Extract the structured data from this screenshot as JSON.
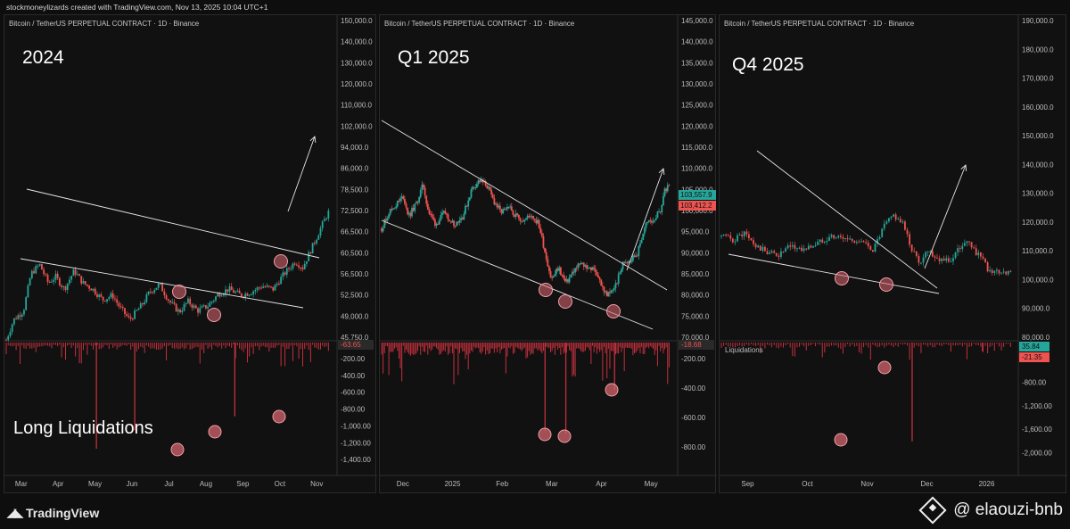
{
  "header": {
    "credit": "stockmoneylizards created with TradingView.com, Nov 13, 2025 10:04 UTC+1"
  },
  "footer": {
    "brand": "TradingView",
    "watermark": "@ elaouzi-bnb"
  },
  "colors": {
    "up": "#26a69a",
    "down": "#ef5350",
    "liq": "#c2313d",
    "circle": "#e06a74",
    "bg": "#111111",
    "line": "#e6e6e6"
  },
  "chart_data": [
    {
      "type": "candlestick",
      "title": "Bitcoin / TetherUS PERPETUAL CONTRACT · 1D · Binance",
      "label": "2024",
      "subpanel_label": "Long Liquidations",
      "price_ticks": [
        "150,000.0",
        "140,000.0",
        "130,000.0",
        "120,000.0",
        "110,000.0",
        "102,000.0",
        "94,000.0",
        "86,000.0",
        "78,500.0",
        "72,500.0",
        "66,500.0",
        "60,500.0",
        "56,500.0",
        "52,500.0",
        "49,000.0",
        "45,750.0"
      ],
      "liq_ticks": [
        "-200.00",
        "-400.00",
        "-600.00",
        "-800.00",
        "-1,000.00",
        "-1,200.00",
        "-1,400.00"
      ],
      "x_ticks": [
        "Mar",
        "Apr",
        "May",
        "Jun",
        "Jul",
        "Aug",
        "Sep",
        "Oct",
        "Nov"
      ],
      "last_liq": "-63.65",
      "price_range": [
        45750,
        150000
      ],
      "price_series": [
        [
          0,
          45500
        ],
        [
          6,
          52000
        ],
        [
          14,
          55000
        ],
        [
          20,
          67000
        ],
        [
          27,
          70000
        ],
        [
          34,
          64000
        ],
        [
          40,
          66000
        ],
        [
          47,
          62000
        ],
        [
          55,
          68000
        ],
        [
          62,
          64000
        ],
        [
          70,
          62000
        ],
        [
          78,
          58500
        ],
        [
          86,
          60000
        ],
        [
          92,
          56000
        ],
        [
          100,
          52000
        ],
        [
          110,
          57000
        ],
        [
          116,
          61000
        ],
        [
          124,
          63500
        ],
        [
          132,
          58000
        ],
        [
          140,
          54500
        ],
        [
          147,
          58000
        ],
        [
          155,
          55000
        ],
        [
          163,
          56500
        ],
        [
          172,
          60500
        ],
        [
          180,
          62000
        ],
        [
          190,
          60000
        ],
        [
          198,
          61000
        ],
        [
          207,
          63000
        ],
        [
          216,
          62000
        ],
        [
          225,
          67000
        ],
        [
          234,
          71000
        ],
        [
          240,
          69000
        ],
        [
          248,
          76000
        ],
        [
          257,
          84000
        ],
        [
          262,
          88000
        ]
      ],
      "liq_points": [
        {
          "x": 73,
          "v": -1150
        },
        {
          "x": 104,
          "v": -950
        },
        {
          "x": 185,
          "v": -800
        }
      ]
    },
    {
      "type": "candlestick",
      "title": "Bitcoin / TetherUS PERPETUAL CONTRACT · 1D · Binance",
      "label": "Q1 2025",
      "price_ticks": [
        "145,000.0",
        "140,000.0",
        "135,000.0",
        "130,000.0",
        "125,000.0",
        "120,000.0",
        "115,000.0",
        "110,000.0",
        "105,000.0",
        "100,000.0",
        "95,000.0",
        "90,000.0",
        "85,000.0",
        "80,000.0",
        "75,000.0",
        "70,000.0"
      ],
      "liq_ticks": [
        "-200.00",
        "-400.00",
        "-600.00",
        "-800.00"
      ],
      "x_ticks": [
        "Dec",
        "2025",
        "Feb",
        "Mar",
        "Apr",
        "May"
      ],
      "price_badges": [
        "103,557.9",
        "103,412.2"
      ],
      "last_liq": "-18.68",
      "price_range": [
        65000,
        146000
      ],
      "price_series": [
        [
          0,
          93000
        ],
        [
          8,
          97000
        ],
        [
          16,
          99000
        ],
        [
          24,
          101000
        ],
        [
          30,
          96000
        ],
        [
          38,
          99000
        ],
        [
          46,
          104000
        ],
        [
          52,
          97000
        ],
        [
          60,
          94000
        ],
        [
          70,
          97000
        ],
        [
          80,
          94000
        ],
        [
          90,
          96000
        ],
        [
          100,
          103000
        ],
        [
          108,
          105000
        ],
        [
          116,
          104000
        ],
        [
          124,
          100000
        ],
        [
          132,
          97000
        ],
        [
          142,
          98000
        ],
        [
          150,
          96000
        ],
        [
          158,
          95000
        ],
        [
          166,
          96500
        ],
        [
          174,
          94000
        ],
        [
          182,
          86000
        ],
        [
          188,
          80000
        ],
        [
          196,
          83000
        ],
        [
          204,
          79000
        ],
        [
          212,
          82000
        ],
        [
          220,
          84000
        ],
        [
          230,
          83000
        ],
        [
          238,
          82000
        ],
        [
          246,
          77000
        ],
        [
          252,
          76000
        ],
        [
          260,
          79000
        ],
        [
          268,
          84500
        ],
        [
          276,
          85000
        ],
        [
          284,
          87000
        ],
        [
          292,
          94000
        ],
        [
          300,
          95000
        ],
        [
          308,
          97000
        ],
        [
          314,
          103000
        ],
        [
          320,
          103500
        ]
      ],
      "liq_points": [
        {
          "x": 181,
          "v": -560
        },
        {
          "x": 204,
          "v": -580
        },
        {
          "x": 258,
          "v": -300
        }
      ]
    },
    {
      "type": "candlestick",
      "title": "Bitcoin / TetherUS PERPETUAL CONTRACT · 1D · Binance",
      "label": "Q4 2025",
      "subpanel_label": "Liquidations",
      "price_ticks": [
        "190,000.0",
        "180,000.0",
        "170,000.0",
        "160,000.0",
        "150,000.0",
        "140,000.0",
        "130,000.0",
        "120,000.0",
        "110,000.0",
        "100,000.0",
        "90,000.0",
        "80,000.0"
      ],
      "liq_ticks": [
        "-400.00",
        "-800.00",
        "-1,200.00",
        "-1,600.00",
        "-2,000.00"
      ],
      "x_ticks": [
        "Sep",
        "Oct",
        "Nov",
        "Dec",
        "2026"
      ],
      "liq_badges": [
        "35.84",
        "-21.35"
      ],
      "price_range": [
        78000,
        196000
      ],
      "price_series": [
        [
          0,
          116000
        ],
        [
          8,
          114500
        ],
        [
          16,
          117000
        ],
        [
          24,
          112000
        ],
        [
          32,
          110000
        ],
        [
          40,
          109000
        ],
        [
          48,
          112000
        ],
        [
          58,
          111000
        ],
        [
          66,
          113000
        ],
        [
          76,
          116000
        ],
        [
          86,
          115000
        ],
        [
          96,
          114000
        ],
        [
          106,
          111000
        ],
        [
          114,
          120000
        ],
        [
          120,
          123500
        ],
        [
          126,
          121000
        ],
        [
          132,
          112000
        ],
        [
          138,
          106000
        ],
        [
          144,
          111000
        ],
        [
          150,
          108000
        ],
        [
          160,
          107000
        ],
        [
          170,
          114500
        ],
        [
          176,
          111000
        ],
        [
          182,
          107000
        ],
        [
          188,
          102000
        ],
        [
          196,
          103000
        ],
        [
          202,
          102000
        ]
      ],
      "liq_points": [
        {
          "x": 133,
          "v": -1550
        },
        {
          "x": 182,
          "v": -140
        }
      ]
    }
  ]
}
